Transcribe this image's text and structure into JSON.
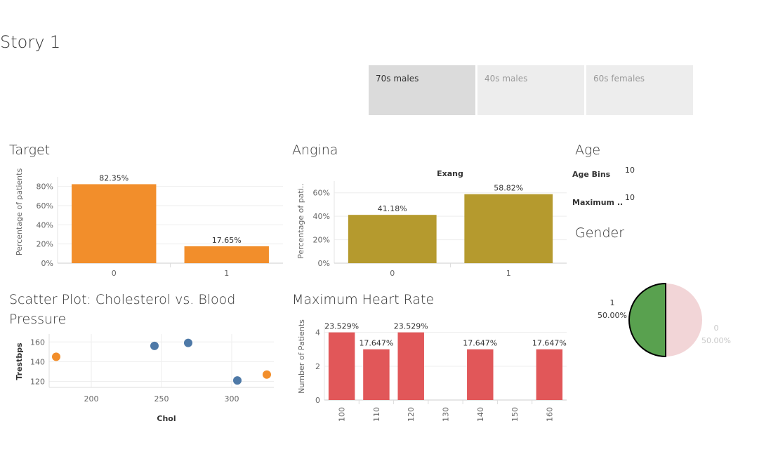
{
  "story": {
    "title": "Story 1"
  },
  "tabs": [
    {
      "label": "70s males",
      "active": true
    },
    {
      "label": "40s males",
      "active": false
    },
    {
      "label": "60s females",
      "active": false
    }
  ],
  "colors": {
    "target": "#f28e2b",
    "angina": "#b59a2e",
    "heart": "#e15759",
    "scatter_blue": "#4e79a7",
    "scatter_orange": "#f28e2b",
    "pie_1": "#59a14f",
    "pie_0": "#f2d5d7"
  },
  "chart_data": [
    {
      "id": "target",
      "type": "bar",
      "title": "Target",
      "categories": [
        "0",
        "1"
      ],
      "values": [
        82.35,
        17.65
      ],
      "value_labels": [
        "82.35%",
        "17.65%"
      ],
      "ylabel": "Percentage of patients",
      "ylim": [
        0,
        90
      ],
      "yticks": [
        0,
        20,
        40,
        60,
        80
      ],
      "ytick_labels": [
        "0%",
        "20%",
        "40%",
        "60%",
        "80%"
      ]
    },
    {
      "id": "angina",
      "type": "bar",
      "title": "Angina",
      "header": "Exang",
      "categories": [
        "0",
        "1"
      ],
      "values": [
        41.18,
        58.82
      ],
      "value_labels": [
        "41.18%",
        "58.82%"
      ],
      "ylabel": "Percentage of pati..",
      "ylim": [
        0,
        70
      ],
      "yticks": [
        0,
        20,
        40,
        60
      ],
      "ytick_labels": [
        "0%",
        "20%",
        "40%",
        "60%"
      ]
    },
    {
      "id": "scatter",
      "type": "scatter",
      "title": "Scatter Plot: Cholesterol vs. Blood Pressure",
      "xlabel": "Chol",
      "ylabel": "Trestbps",
      "xlim": [
        170,
        330
      ],
      "ylim": [
        114,
        168
      ],
      "xticks": [
        200,
        250,
        300
      ],
      "yticks": [
        120,
        140,
        160
      ],
      "points": [
        {
          "x": 175,
          "y": 145,
          "group": "orange"
        },
        {
          "x": 245,
          "y": 156,
          "group": "blue"
        },
        {
          "x": 269,
          "y": 159,
          "group": "blue"
        },
        {
          "x": 304,
          "y": 121,
          "group": "blue"
        },
        {
          "x": 325,
          "y": 127,
          "group": "orange"
        }
      ]
    },
    {
      "id": "heart",
      "type": "bar",
      "title": "Maximum Heart Rate",
      "categories": [
        "100",
        "110",
        "120",
        "130",
        "140",
        "150",
        "160"
      ],
      "values": [
        4,
        3,
        4,
        0,
        3,
        0,
        3
      ],
      "value_labels": [
        "23.529%",
        "17.647%",
        "23.529%",
        "",
        "17.647%",
        "",
        "17.647%"
      ],
      "ylabel": "Number of Patients",
      "ylim": [
        0,
        4.4
      ],
      "yticks": [
        0,
        2,
        4
      ],
      "ytick_labels": [
        "0",
        "2",
        "4"
      ]
    },
    {
      "id": "gender",
      "type": "pie",
      "title": "Gender",
      "slices": [
        {
          "label": "1",
          "value": 50.0,
          "percent_label": "50.00%"
        },
        {
          "label": "0",
          "value": 50.0,
          "percent_label": "50.00%"
        }
      ]
    }
  ],
  "age": {
    "title": "Age",
    "rows": [
      {
        "label": "Age Bins",
        "value": "10"
      },
      {
        "label": "Maximum ..",
        "value": "10"
      }
    ]
  }
}
